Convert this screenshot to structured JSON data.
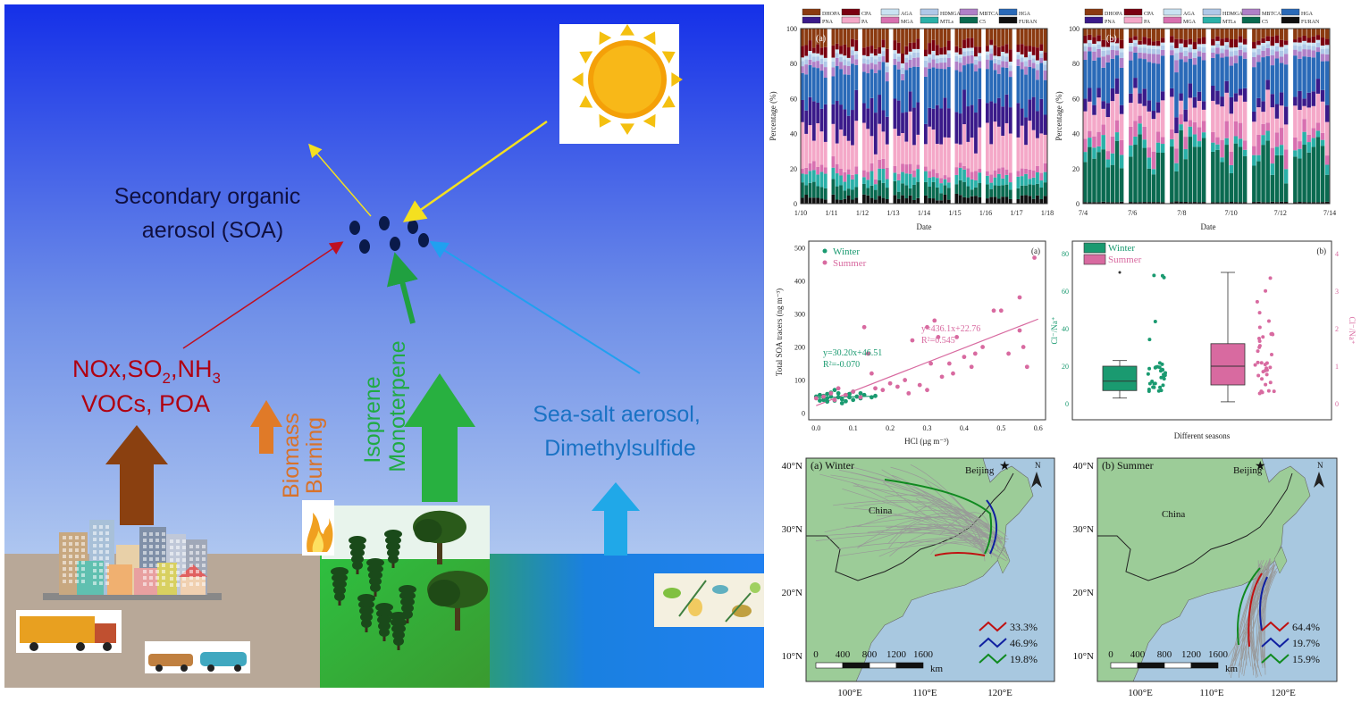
{
  "left_panel": {
    "soa_label_line1": "Secondary organic",
    "soa_label_line2": "aerosol (SOA)",
    "anthropogenic_line1": "NOx,SO",
    "anthropogenic_sub1": "2",
    "anthropogenic_mid": ",NH",
    "anthropogenic_sub2": "3",
    "anthropogenic_line2": "VOCs, POA",
    "biomass_line1": "Biomass",
    "biomass_line2": "Burning",
    "biogenic_line1": "Isoprene",
    "biogenic_line2": "Monoterpene",
    "marine_line1": "Sea-salt aerosol,",
    "marine_line2": "Dimethylsulfide",
    "colors": {
      "sky_top": "#1a34e6",
      "sky_bottom": "#c4dcf0",
      "anthro": "#b00010",
      "biomass": "#d8722a",
      "biogenic": "#22aa44",
      "marine": "#1a72c4",
      "soa_text": "#101040"
    }
  },
  "bar_charts": {
    "legend_row1": [
      "DHOPA",
      "CPA",
      "AGA",
      "HDMGA",
      "MBTCA",
      "HGA"
    ],
    "legend_row2": [
      "PNA",
      "PA",
      "MGA",
      "MTLs",
      "C5",
      "FURAN"
    ],
    "legend_colors": [
      "#8b3a10",
      "#7a0010",
      "#c9e2f2",
      "#b0c8e8",
      "#b080c8",
      "#2a6ab8",
      "#3a1a8a",
      "#f4a8c8",
      "#d870b0",
      "#2ab0a8",
      "#0a6a50",
      "#101010"
    ],
    "winter": {
      "panel": "(a)",
      "ylabel": "Percentage (%)",
      "xlabel": "Date",
      "yticks": [
        "0",
        "20",
        "40",
        "60",
        "80",
        "100"
      ],
      "xticks": [
        "1/10",
        "1/11",
        "1/12",
        "1/13",
        "1/14",
        "1/15",
        "1/16",
        "1/17",
        "1/18"
      ]
    },
    "summer": {
      "panel": "(b)",
      "ylabel": "Percentage (%)",
      "xlabel": "Date",
      "yticks": [
        "0",
        "20",
        "40",
        "60",
        "80",
        "100"
      ],
      "xticks": [
        "7/4",
        "7/6",
        "7/8",
        "7/10",
        "7/12",
        "7/14"
      ]
    }
  },
  "scatter": {
    "panel": "(a)",
    "legend": [
      "Winter",
      "Summer"
    ],
    "ylabel": "Total SOA tracers (ng m⁻³)",
    "xlabel": "HCl (µg m⁻³)",
    "xticks": [
      "0.0",
      "0.1",
      "0.2",
      "0.3",
      "0.4",
      "0.5",
      "0.6"
    ],
    "yticks": [
      "0",
      "100",
      "200",
      "300",
      "400",
      "500"
    ],
    "summer_eq": "y=436.1x+22.76",
    "summer_r2": "R²=0.545",
    "winter_eq": "y=30.20x+46.51",
    "winter_r2": "R²=-0.070",
    "colors": {
      "winter": "#1a9a70",
      "summer": "#d86aa0"
    }
  },
  "chart_data": [
    {
      "type": "scatter",
      "xlabel": "HCl (µg m⁻³)",
      "ylabel": "Total SOA tracers (ng m⁻³)",
      "xlim": [
        -0.02,
        0.62
      ],
      "ylim": [
        -20,
        520
      ],
      "series": [
        {
          "name": "Winter",
          "points": [
            [
              0.01,
              55
            ],
            [
              0.02,
              40
            ],
            [
              0.03,
              45
            ],
            [
              0.04,
              50
            ],
            [
              0.05,
              38
            ],
            [
              0.06,
              60
            ],
            [
              0.07,
              42
            ],
            [
              0.08,
              55
            ],
            [
              0.09,
              48
            ],
            [
              0.1,
              65
            ],
            [
              0.11,
              50
            ],
            [
              0.03,
              35
            ],
            [
              0.05,
              70
            ],
            [
              0.12,
              45
            ],
            [
              0.02,
              52
            ],
            [
              0.07,
              30
            ],
            [
              0.09,
              58
            ],
            [
              0.04,
              62
            ],
            [
              0.06,
              48
            ],
            [
              0.08,
              36
            ],
            [
              0.1,
              40
            ],
            [
              0.12,
              60
            ],
            [
              0.13,
              55
            ],
            [
              0.0,
              50
            ],
            [
              0.01,
              38
            ],
            [
              0.03,
              58
            ],
            [
              0.15,
              48
            ],
            [
              0.16,
              52
            ]
          ]
        },
        {
          "name": "Summer",
          "points": [
            [
              0.0,
              45
            ],
            [
              0.02,
              50
            ],
            [
              0.04,
              60
            ],
            [
              0.05,
              40
            ],
            [
              0.06,
              75
            ],
            [
              0.08,
              55
            ],
            [
              0.1,
              65
            ],
            [
              0.12,
              48
            ],
            [
              0.13,
              260
            ],
            [
              0.14,
              180
            ],
            [
              0.15,
              120
            ],
            [
              0.16,
              75
            ],
            [
              0.18,
              70
            ],
            [
              0.2,
              90
            ],
            [
              0.22,
              80
            ],
            [
              0.24,
              100
            ],
            [
              0.25,
              60
            ],
            [
              0.26,
              220
            ],
            [
              0.28,
              85
            ],
            [
              0.3,
              70
            ],
            [
              0.3,
              260
            ],
            [
              0.31,
              150
            ],
            [
              0.32,
              280
            ],
            [
              0.34,
              110
            ],
            [
              0.36,
              150
            ],
            [
              0.37,
              120
            ],
            [
              0.38,
              230
            ],
            [
              0.4,
              170
            ],
            [
              0.42,
              140
            ],
            [
              0.45,
              200
            ],
            [
              0.48,
              310
            ],
            [
              0.5,
              310
            ],
            [
              0.52,
              180
            ],
            [
              0.55,
              250
            ],
            [
              0.55,
              350
            ],
            [
              0.56,
              200
            ],
            [
              0.57,
              140
            ],
            [
              0.59,
              470
            ],
            [
              0.33,
              230
            ],
            [
              0.43,
              180
            ]
          ]
        }
      ],
      "fits": [
        {
          "name": "Summer",
          "slope": 436.1,
          "intercept": 22.76
        },
        {
          "name": "Winter",
          "slope": 30.2,
          "intercept": 46.51
        }
      ]
    },
    {
      "type": "box",
      "xlabel": "Different seasons",
      "ylabel": "Cl⁻/Na⁺",
      "series": [
        {
          "name": "Winter",
          "axis": "left",
          "ylim": [
            0,
            80
          ],
          "min": 3,
          "q1": 7,
          "median": 12,
          "q3": 20,
          "max": 23,
          "outliers": [
            70
          ]
        },
        {
          "name": "Summer",
          "axis": "right",
          "ylim": [
            0,
            4
          ],
          "min": 0.05,
          "q1": 0.5,
          "median": 1.0,
          "q3": 1.6,
          "max": 3.5
        }
      ]
    }
  ],
  "box": {
    "panel": "(b)",
    "legend": [
      "Winter",
      "Summer"
    ],
    "ylabel_left": "Cl⁻/Na⁺",
    "ylabel_right": "Cl⁻/Na⁺",
    "xlabel": "Different seasons",
    "yticks_left": [
      "0",
      "20",
      "40",
      "60",
      "80"
    ],
    "yticks_right": [
      "0",
      "1",
      "2",
      "3",
      "4"
    ]
  },
  "maps": {
    "winter": {
      "title": "(a) Winter",
      "city": "Beijing",
      "country": "China",
      "pct": [
        "33.3%",
        "46.9%",
        "19.8%"
      ]
    },
    "summer": {
      "title": "(b) Summer",
      "city": "Beijing",
      "country": "China",
      "pct": [
        "64.4%",
        "19.7%",
        "15.9%"
      ]
    },
    "lat_ticks": [
      "40°N",
      "30°N",
      "20°N",
      "10°N"
    ],
    "lon_ticks": [
      "100°E",
      "110°E",
      "120°E"
    ],
    "scale": [
      "0",
      "400",
      "800",
      "1200",
      "1600"
    ],
    "scale_unit": "km",
    "north": "N",
    "cluster_colors": [
      "#c01010",
      "#1020a0",
      "#108a20"
    ]
  }
}
